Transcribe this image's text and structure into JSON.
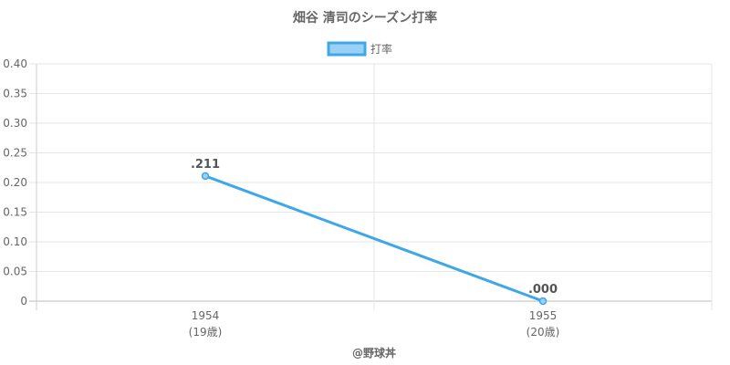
{
  "chart_data": {
    "type": "line",
    "title": "畑谷 清司のシーズン打率",
    "legend": {
      "label": "打率",
      "position": "top"
    },
    "categories": [
      "1954",
      "1955"
    ],
    "category_sublabels": [
      "(19歳)",
      "(20歳)"
    ],
    "series": [
      {
        "name": "打率",
        "values": [
          0.211,
          0.0
        ],
        "data_labels": [
          ".211",
          ".000"
        ]
      }
    ],
    "y_ticks": [
      "0",
      "0.05",
      "0.10",
      "0.15",
      "0.20",
      "0.25",
      "0.30",
      "0.35",
      "0.40"
    ],
    "ylim": [
      0,
      0.4
    ],
    "grid": true,
    "line_color": "#3ea7e8",
    "fill_color": "#9ad0f5"
  },
  "footer": {
    "credit": "@野球丼"
  }
}
